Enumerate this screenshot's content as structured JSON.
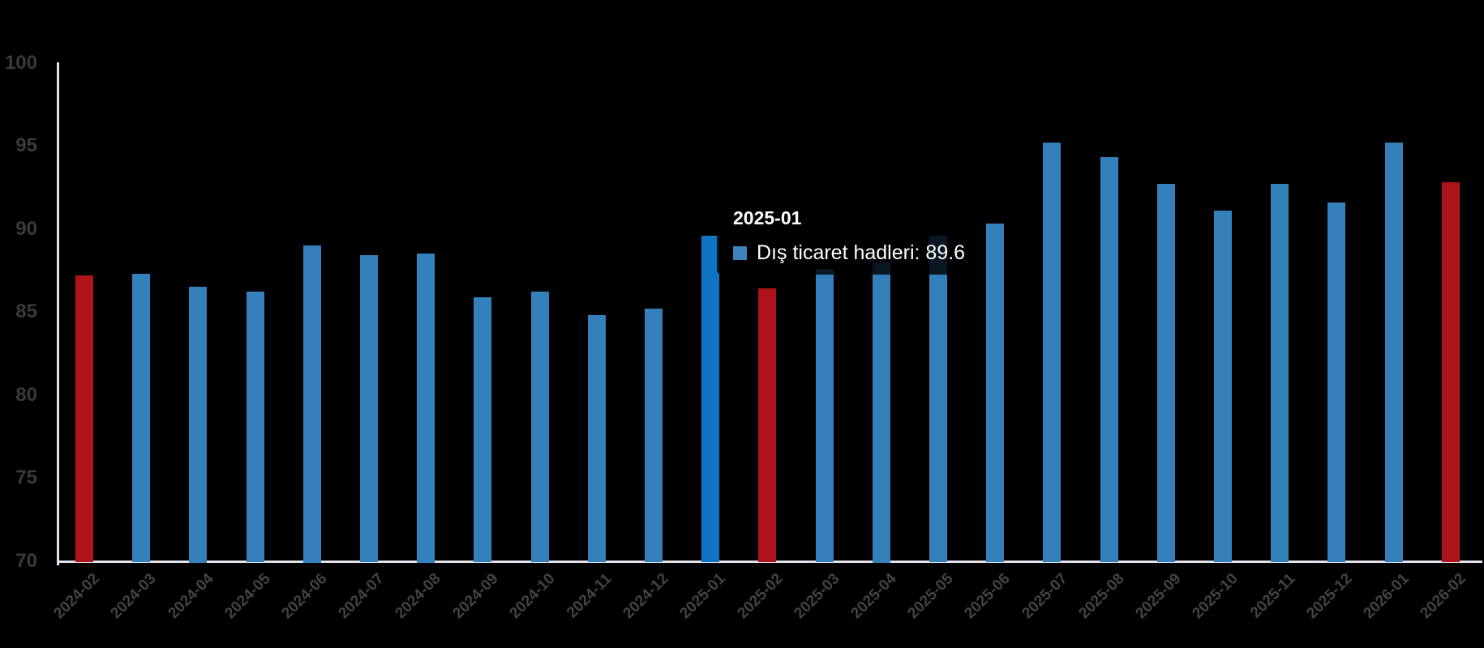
{
  "chart_data": {
    "type": "bar",
    "title": "",
    "series_name": "Dış ticaret hadleri",
    "categories": [
      "2024-02",
      "2024-03",
      "2024-04",
      "2024-05",
      "2024-06",
      "2024-07",
      "2024-08",
      "2024-09",
      "2024-10",
      "2024-11",
      "2024-12",
      "2025-01",
      "2025-02",
      "2025-03",
      "2025-04",
      "2025-05",
      "2025-06",
      "2025-07",
      "2025-08",
      "2025-09",
      "2025-10",
      "2025-11",
      "2025-12",
      "2026-01",
      "2026-02"
    ],
    "values": [
      87.2,
      87.3,
      86.5,
      86.2,
      89.0,
      88.4,
      88.5,
      85.9,
      86.2,
      84.8,
      85.2,
      89.6,
      86.4,
      87.6,
      88.0,
      89.6,
      90.3,
      95.2,
      94.3,
      92.7,
      91.1,
      92.7,
      91.6,
      95.2,
      92.8
    ],
    "highlighted_red_indices": [
      0,
      12,
      24
    ],
    "hovered_index": 11,
    "ylim": [
      70,
      100
    ],
    "yticks": [
      70,
      75,
      80,
      85,
      90,
      95,
      100
    ],
    "grid": "off",
    "legend": "none",
    "xlabel": "",
    "ylabel": "",
    "x_tick_rotation_deg": -45
  },
  "colors": {
    "background": "#000000",
    "bar_blue": "#3380BA",
    "bar_hover_blue": "#1074C4",
    "bar_red": "#AE1419",
    "axis_line": "#E2E2EC",
    "y_tick_label": "#3A3A3C",
    "x_tick_label": "#434345",
    "tooltip_bg": "rgba(0,0,0,0.82)",
    "tooltip_text": "#FFFFFF",
    "tooltip_marker": "#3E82BC"
  },
  "tooltip": {
    "title": "2025-01",
    "series": "Dış ticaret hadleri",
    "value": "89.6",
    "text": "Dış ticaret hadleri: 89.6"
  }
}
